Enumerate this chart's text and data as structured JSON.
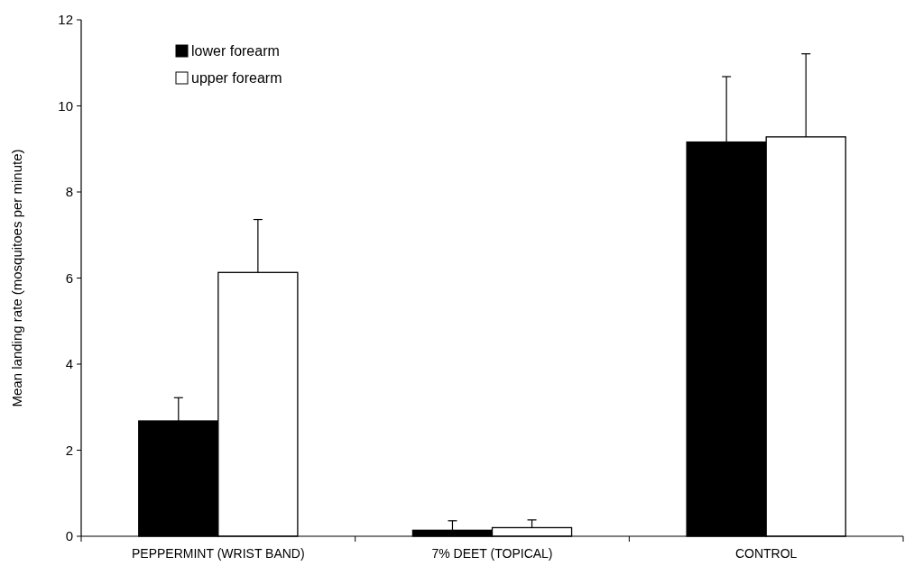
{
  "chart_data": {
    "type": "bar",
    "ylabel": "Mean landing rate (mosquitoes per minute)",
    "categories": [
      "PEPPERMINT (WRIST BAND)",
      "7% DEET (TOPICAL)",
      "CONTROL"
    ],
    "series": [
      {
        "name": "lower forearm",
        "color": "#000000",
        "values": [
          2.68,
          0.14,
          9.16
        ],
        "errors": [
          [
            2.68,
            3.22
          ],
          [
            0.14,
            0.36
          ],
          [
            9.16,
            10.68
          ]
        ]
      },
      {
        "name": "upper forearm",
        "color": "#ffffff",
        "values": [
          6.13,
          0.2,
          9.28
        ],
        "errors": [
          [
            6.13,
            7.36
          ],
          [
            0.2,
            0.38
          ],
          [
            9.28,
            11.21
          ]
        ]
      }
    ],
    "ylim": [
      0,
      12
    ],
    "yticks": [
      0,
      2,
      4,
      6,
      8,
      10,
      12
    ],
    "grid": false,
    "legend": "top left"
  }
}
